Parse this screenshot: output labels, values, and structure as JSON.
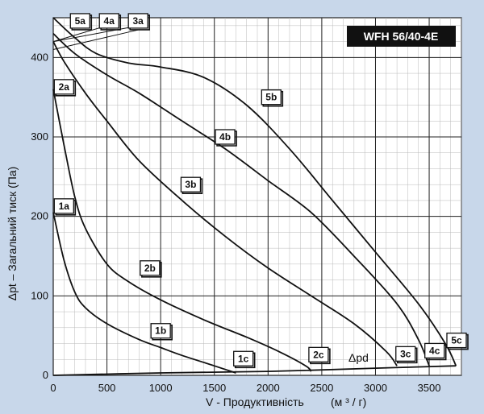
{
  "chart_data": {
    "type": "line",
    "title": "WFH 56/40-4E",
    "xlabel": "V - Продуктивність",
    "xunit": "(м ³ / г)",
    "ylabel": "Δpt – Загальний тиск (Па)",
    "xlim": [
      0,
      3800
    ],
    "ylim": [
      0,
      450
    ],
    "xticks": [
      0,
      500,
      1000,
      1500,
      2000,
      2500,
      3000,
      3500
    ],
    "yticks": [
      0,
      100,
      200,
      300,
      400
    ],
    "minor_grid": true,
    "dynamic_pressure_label": "Δpd",
    "series": [
      {
        "name": "1",
        "color": "#111111",
        "points": [
          [
            0,
            205
          ],
          [
            100,
            145
          ],
          [
            200,
            105
          ],
          [
            300,
            85
          ],
          [
            500,
            65
          ],
          [
            800,
            45
          ],
          [
            1000,
            35
          ],
          [
            1200,
            25
          ],
          [
            1500,
            12
          ],
          [
            1700,
            3
          ]
        ]
      },
      {
        "name": "2",
        "color": "#111111",
        "points": [
          [
            0,
            360
          ],
          [
            100,
            290
          ],
          [
            200,
            225
          ],
          [
            300,
            185
          ],
          [
            500,
            140
          ],
          [
            700,
            118
          ],
          [
            1000,
            95
          ],
          [
            1400,
            70
          ],
          [
            1800,
            48
          ],
          [
            2100,
            30
          ],
          [
            2350,
            12
          ],
          [
            2400,
            5
          ]
        ]
      },
      {
        "name": "3",
        "color": "#111111",
        "points": [
          [
            0,
            420
          ],
          [
            100,
            395
          ],
          [
            300,
            355
          ],
          [
            500,
            320
          ],
          [
            800,
            270
          ],
          [
            1200,
            220
          ],
          [
            1600,
            175
          ],
          [
            2000,
            135
          ],
          [
            2400,
            100
          ],
          [
            2800,
            65
          ],
          [
            3100,
            30
          ],
          [
            3200,
            12
          ]
        ]
      },
      {
        "name": "4",
        "color": "#111111",
        "points": [
          [
            0,
            430
          ],
          [
            200,
            405
          ],
          [
            500,
            378
          ],
          [
            800,
            355
          ],
          [
            1200,
            320
          ],
          [
            1600,
            285
          ],
          [
            2000,
            245
          ],
          [
            2400,
            205
          ],
          [
            2800,
            150
          ],
          [
            3200,
            90
          ],
          [
            3400,
            45
          ],
          [
            3500,
            12
          ]
        ]
      },
      {
        "name": "5",
        "color": "#111111",
        "points": [
          [
            0,
            450
          ],
          [
            200,
            425
          ],
          [
            400,
            405
          ],
          [
            700,
            393
          ],
          [
            1000,
            388
          ],
          [
            1400,
            375
          ],
          [
            1800,
            340
          ],
          [
            2200,
            285
          ],
          [
            2600,
            220
          ],
          [
            3000,
            155
          ],
          [
            3400,
            90
          ],
          [
            3650,
            40
          ],
          [
            3750,
            12
          ]
        ]
      },
      {
        "name": "Δpd",
        "color": "#111111",
        "points": [
          [
            0,
            0
          ],
          [
            1000,
            3
          ],
          [
            2000,
            5
          ],
          [
            3000,
            9
          ],
          [
            3750,
            12
          ]
        ]
      }
    ],
    "labels": [
      {
        "text": "5a",
        "x": 250,
        "y": 446
      },
      {
        "text": "4a",
        "x": 520,
        "y": 446
      },
      {
        "text": "3a",
        "x": 790,
        "y": 446
      },
      {
        "text": "2a",
        "x": 100,
        "y": 363
      },
      {
        "text": "1a",
        "x": 100,
        "y": 213
      },
      {
        "text": "5b",
        "x": 2030,
        "y": 350
      },
      {
        "text": "4b",
        "x": 1600,
        "y": 300
      },
      {
        "text": "3b",
        "x": 1280,
        "y": 240
      },
      {
        "text": "2b",
        "x": 900,
        "y": 135
      },
      {
        "text": "1b",
        "x": 1000,
        "y": 56
      },
      {
        "text": "1c",
        "x": 1770,
        "y": 21
      },
      {
        "text": "2c",
        "x": 2470,
        "y": 26
      },
      {
        "text": "3c",
        "x": 3280,
        "y": 27
      },
      {
        "text": "4c",
        "x": 3550,
        "y": 31
      },
      {
        "text": "5c",
        "x": 3820,
        "y": 44
      }
    ],
    "fan_lines": [
      {
        "from": [
          0,
          420
        ],
        "to": [
          500,
          440
        ]
      },
      {
        "from": [
          0,
          420
        ],
        "to": [
          800,
          440
        ]
      },
      {
        "from": [
          0,
          410
        ],
        "to": [
          800,
          435
        ]
      }
    ]
  }
}
